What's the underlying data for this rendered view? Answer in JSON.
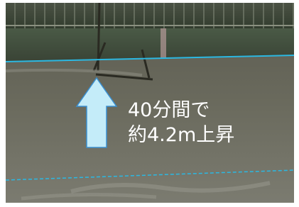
{
  "annotation": {
    "line1": "40分間で",
    "line2": "約4.2m上昇"
  }
}
